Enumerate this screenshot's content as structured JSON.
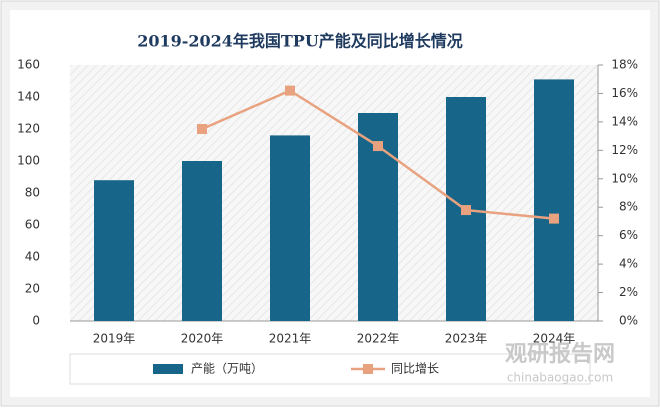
{
  "chart_data": {
    "type": "bar-line",
    "title": "2019-2024年我国TPU产能及同比增长情况",
    "categories": [
      "2019年",
      "2020年",
      "2021年",
      "2022年",
      "2023年",
      "2024年"
    ],
    "series": [
      {
        "name": "产能（万吨）",
        "color": "#176689",
        "type": "bar",
        "values": [
          88,
          100,
          116,
          130,
          140,
          151
        ]
      },
      {
        "name": "同比增长",
        "color": "#e8a27f",
        "type": "line",
        "axis": "y2",
        "values": [
          null,
          13.5,
          16.2,
          12.3,
          7.8,
          7.2
        ]
      }
    ],
    "ylim": [
      0,
      160
    ],
    "yticks": [
      0,
      20,
      40,
      60,
      80,
      100,
      120,
      140,
      160
    ],
    "y2lim": [
      0,
      18
    ],
    "y2ticks": [
      {
        "value": 0,
        "label": "0%"
      },
      {
        "value": 2,
        "label": "2%"
      },
      {
        "value": 4,
        "label": "4%"
      },
      {
        "value": 6,
        "label": "6%"
      },
      {
        "value": 8,
        "label": "8%"
      },
      {
        "value": 10,
        "label": "10%"
      },
      {
        "value": 12,
        "label": "12%"
      },
      {
        "value": 14,
        "label": "14%"
      },
      {
        "value": 16,
        "label": "16%"
      },
      {
        "value": 18,
        "label": "18%"
      }
    ],
    "watermark": {
      "name": "观研报告网",
      "url": "chinabaogao.com"
    }
  }
}
